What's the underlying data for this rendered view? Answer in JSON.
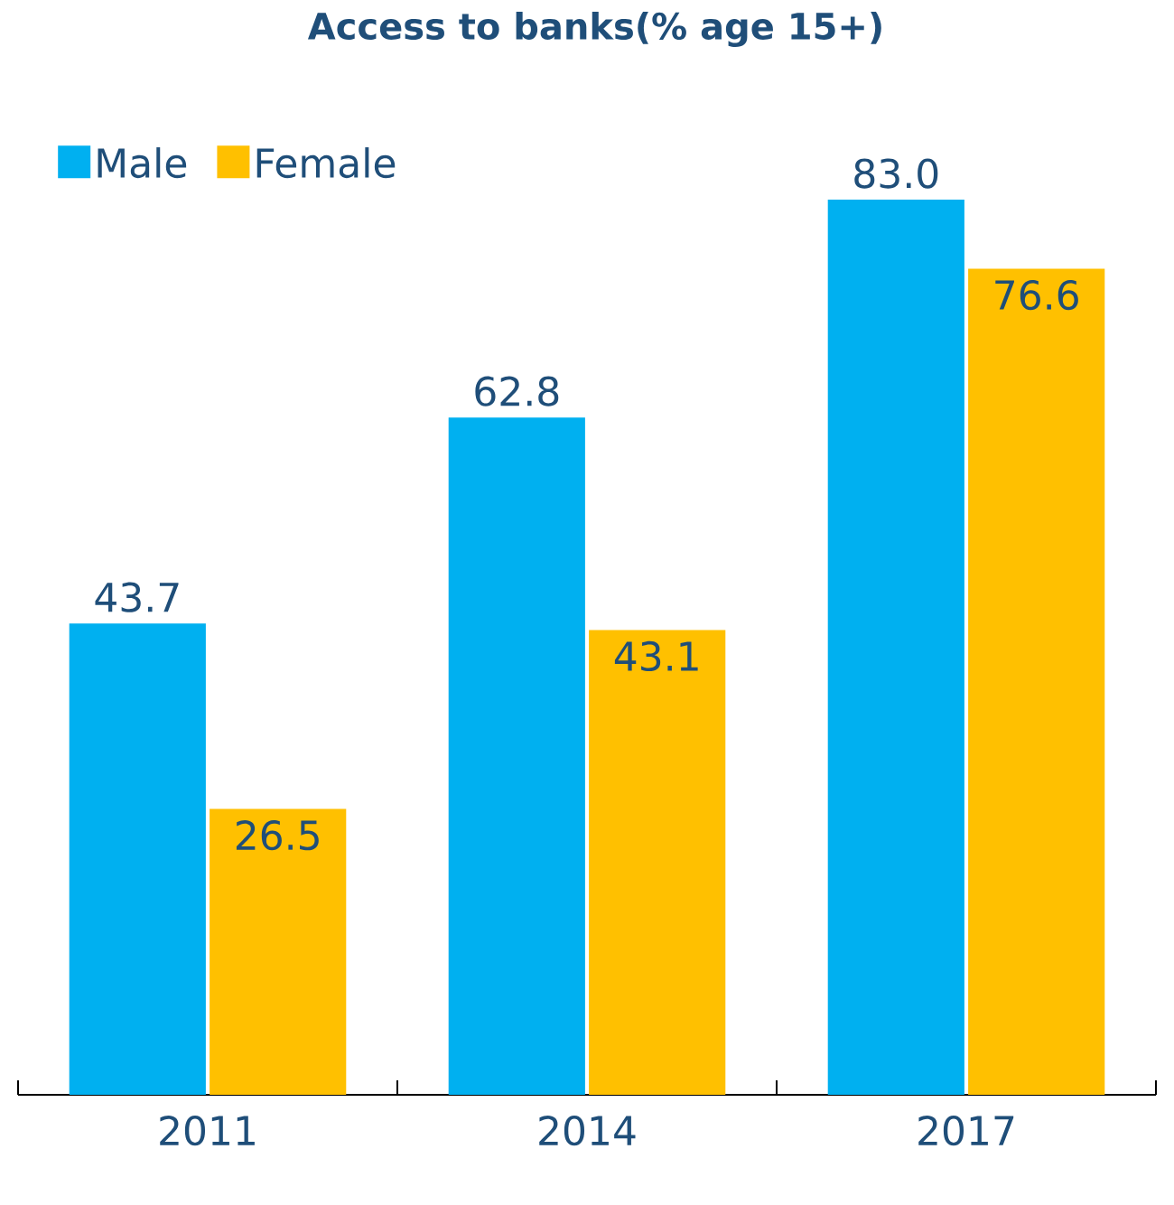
{
  "chart_data": {
    "type": "bar",
    "title": "Access to banks(% age 15+)",
    "categories": [
      "2011",
      "2014",
      "2017"
    ],
    "series": [
      {
        "name": "Male",
        "color": "#00b0f0",
        "values": [
          43.7,
          62.8,
          83.0
        ],
        "value_labels": [
          "43.7",
          "62.8",
          "83.0"
        ]
      },
      {
        "name": "Female",
        "color": "#ffc000",
        "values": [
          26.5,
          43.1,
          76.6
        ],
        "value_labels": [
          "26.5",
          "43.1",
          "76.6"
        ]
      }
    ],
    "legend": "top left"
  }
}
